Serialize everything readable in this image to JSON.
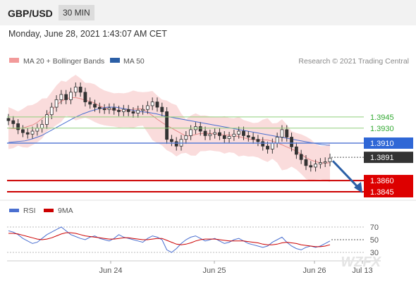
{
  "header": {
    "pair": "GBP/USD",
    "timeframe": "30 MIN"
  },
  "datetime": "Monday, June 28, 2021 1:43:07 AM CET",
  "legend": {
    "bollinger": "MA 20 + Bollinger Bands",
    "ma50": "MA 50",
    "source": "Research © 2021 Trading Central"
  },
  "rsi_legend": {
    "rsi": "RSI",
    "ma": "9MA"
  },
  "colors": {
    "support": "#cc0000",
    "resistance_level": "#33aa33",
    "ma50": "#4a6fd0",
    "bollinger": "#f29a9a",
    "candle": "#333333",
    "arrow": "#2b5fa6",
    "rsi": "#4a6fd0",
    "rsi_ma": "#cc0000"
  },
  "chart_data": {
    "type": "candlestick",
    "instrument": "GBP/USD",
    "interval": "30 MIN",
    "x_tick_labels": [
      "Jun 24",
      "Jun 25",
      "Jun 26",
      "Jul 13"
    ],
    "price_levels": [
      {
        "label": "1.3945",
        "value": 1.3945,
        "kind": "resistance"
      },
      {
        "label": "1.3930",
        "value": 1.393,
        "kind": "resistance"
      },
      {
        "label": "1.3910",
        "value": 1.391,
        "kind": "pivot"
      },
      {
        "label": "1.3891",
        "value": 1.3891,
        "kind": "last"
      },
      {
        "label": "1.3860",
        "value": 1.386,
        "kind": "support"
      },
      {
        "label": "1.3845",
        "value": 1.3845,
        "kind": "support"
      }
    ],
    "close": [
      1.394,
      1.3936,
      1.3928,
      1.3924,
      1.3922,
      1.3926,
      1.393,
      1.3935,
      1.3948,
      1.3958,
      1.3968,
      1.3975,
      1.3968,
      1.3978,
      1.3985,
      1.3978,
      1.3965,
      1.3962,
      1.3958,
      1.3956,
      1.3955,
      1.3957,
      1.3954,
      1.3952,
      1.3955,
      1.3952,
      1.395,
      1.3954,
      1.3955,
      1.396,
      1.3965,
      1.3958,
      1.3952,
      1.3915,
      1.3912,
      1.3906,
      1.3915,
      1.392,
      1.3928,
      1.3932,
      1.3926,
      1.392,
      1.3922,
      1.3924,
      1.392,
      1.3916,
      1.3919,
      1.3922,
      1.3926,
      1.392,
      1.3918,
      1.3915,
      1.3912,
      1.3906,
      1.3902,
      1.391,
      1.3918,
      1.3928,
      1.3918,
      1.3905,
      1.3895,
      1.3888,
      1.388,
      1.3878,
      1.3882,
      1.3884,
      1.3885,
      1.389
    ],
    "ma50": [
      1.3911,
      1.3912,
      1.3913,
      1.3916,
      1.392,
      1.3926,
      1.3932,
      1.3938,
      1.3944,
      1.3949,
      1.3953,
      1.3956,
      1.3958,
      1.3958,
      1.3956,
      1.3954,
      1.3952,
      1.3951,
      1.3949,
      1.3946,
      1.3944,
      1.3942,
      1.394,
      1.3938,
      1.3936,
      1.3934,
      1.3932,
      1.393,
      1.3928,
      1.3926,
      1.3924,
      1.3922,
      1.392,
      1.3918,
      1.3916,
      1.3914,
      1.3912,
      1.391,
      1.3908,
      1.3907
    ],
    "rsi_y_ticks": [
      70,
      50,
      30
    ],
    "rsi": [
      64,
      62,
      58,
      52,
      48,
      44,
      46,
      52,
      58,
      62,
      66,
      70,
      64,
      58,
      55,
      52,
      50,
      54,
      56,
      52,
      50,
      48,
      52,
      58,
      54,
      52,
      50,
      48,
      46,
      52,
      56,
      54,
      50,
      34,
      30,
      36,
      44,
      50,
      54,
      56,
      52,
      48,
      50,
      52,
      48,
      44,
      46,
      50,
      52,
      48,
      44,
      42,
      40,
      38,
      40,
      46,
      50,
      54,
      46,
      40,
      36,
      34,
      38,
      40,
      38,
      40,
      44,
      48
    ],
    "rsi_ma": [
      60,
      60,
      59,
      57,
      55,
      53,
      51,
      50,
      51,
      53,
      56,
      59,
      61,
      61,
      60,
      58,
      56,
      55,
      54,
      53,
      52,
      51,
      51,
      52,
      53,
      53,
      52,
      51,
      50,
      50,
      51,
      52,
      52,
      49,
      46,
      43,
      42,
      43,
      45,
      48,
      50,
      51,
      51,
      51,
      50,
      49,
      48,
      48,
      48,
      48,
      47,
      46,
      45,
      43,
      42,
      42,
      43,
      45,
      46,
      45,
      44,
      42,
      41,
      40,
      39,
      39,
      40,
      42
    ]
  }
}
